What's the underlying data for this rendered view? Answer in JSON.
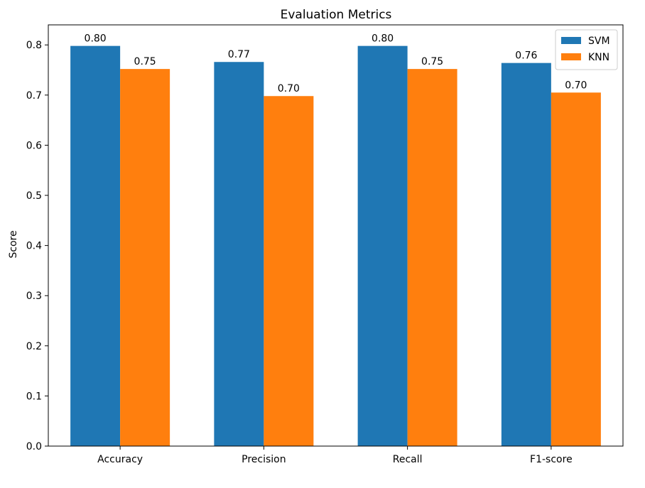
{
  "chart_data": {
    "type": "bar",
    "title": "Evaluation Metrics",
    "xlabel": "",
    "ylabel": "Score",
    "categories": [
      "Accuracy",
      "Precision",
      "Recall",
      "F1-score"
    ],
    "series": [
      {
        "name": "SVM",
        "color": "#1f77b4",
        "values": [
          0.798,
          0.766,
          0.798,
          0.764
        ],
        "labels": [
          "0.80",
          "0.77",
          "0.80",
          "0.76"
        ]
      },
      {
        "name": "KNN",
        "color": "#ff7f0e",
        "values": [
          0.752,
          0.698,
          0.752,
          0.705
        ],
        "labels": [
          "0.75",
          "0.70",
          "0.75",
          "0.70"
        ]
      }
    ],
    "ylim": [
      0,
      0.84
    ],
    "yticks": [
      0.0,
      0.1,
      0.2,
      0.3,
      0.4,
      0.5,
      0.6,
      0.7,
      0.8
    ],
    "ytick_labels": [
      "0.0",
      "0.1",
      "0.2",
      "0.3",
      "0.4",
      "0.5",
      "0.6",
      "0.7",
      "0.8"
    ],
    "grid": false,
    "legend_position": "top-right"
  }
}
